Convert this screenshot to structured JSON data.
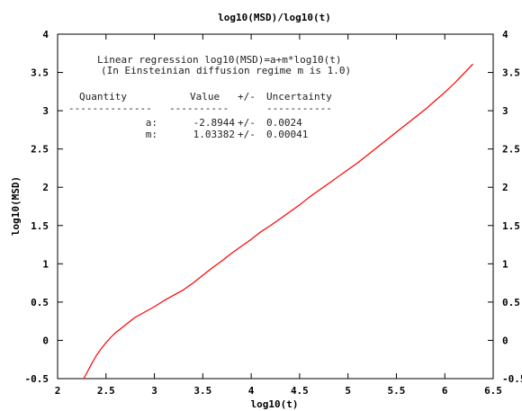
{
  "chart_data": {
    "type": "line",
    "title": "log10(MSD)/log10(t)",
    "xlabel": "log10(t)",
    "ylabel": "log10(MSD)",
    "xlim": [
      2,
      6.5
    ],
    "ylim": [
      -0.5,
      4
    ],
    "xticks": [
      "2",
      "2.5",
      "3",
      "3.5",
      "4",
      "4.5",
      "5",
      "5.5",
      "6",
      "6.5"
    ],
    "yticks": [
      "-0.5",
      "0",
      "0.5",
      "1",
      "1.5",
      "2",
      "2.5",
      "3",
      "3.5",
      "4"
    ],
    "grid": false,
    "line_color": "#ff0000",
    "series": [
      {
        "x": [
          2.27,
          2.3,
          2.35,
          2.4,
          2.45,
          2.5,
          2.55,
          2.6,
          2.7,
          2.8,
          2.9,
          3.0,
          3.1,
          3.2,
          3.3,
          3.4,
          3.5,
          3.6,
          3.7,
          3.8,
          3.9,
          4.0,
          4.1,
          4.2,
          4.3,
          4.4,
          4.5,
          4.6,
          4.7,
          4.8,
          4.9,
          5.0,
          5.1,
          5.2,
          5.3,
          5.4,
          5.5,
          5.6,
          5.7,
          5.8,
          5.9,
          6.0,
          6.1,
          6.2,
          6.29
        ],
        "values": [
          -0.5,
          -0.43,
          -0.31,
          -0.2,
          -0.11,
          -0.03,
          0.04,
          0.1,
          0.2,
          0.3,
          0.37,
          0.44,
          0.52,
          0.59,
          0.66,
          0.75,
          0.85,
          0.95,
          1.04,
          1.14,
          1.23,
          1.32,
          1.42,
          1.5,
          1.59,
          1.68,
          1.77,
          1.87,
          1.96,
          2.05,
          2.14,
          2.23,
          2.32,
          2.42,
          2.52,
          2.62,
          2.72,
          2.82,
          2.92,
          3.02,
          3.13,
          3.24,
          3.36,
          3.49,
          3.61
        ]
      }
    ],
    "annotation": {
      "line1": "Linear regression log10(MSD)=a+m*log10(t)",
      "line2": "(In Einsteinian diffusion regime m is 1.0)",
      "header_quantity": "Quantity",
      "header_value": "Value",
      "header_pm": "+/-",
      "header_uncertainty": "Uncertainty",
      "rule_quantity": "--------------",
      "rule_value": "----------",
      "rule_uncertainty": "-----------",
      "rows": [
        {
          "name": "a:",
          "value": "-2.8944",
          "pm": "+/-",
          "uncertainty": "0.0024"
        },
        {
          "name": "m:",
          "value": "1.03382",
          "pm": "+/-",
          "uncertainty": "0.00041"
        }
      ]
    }
  }
}
